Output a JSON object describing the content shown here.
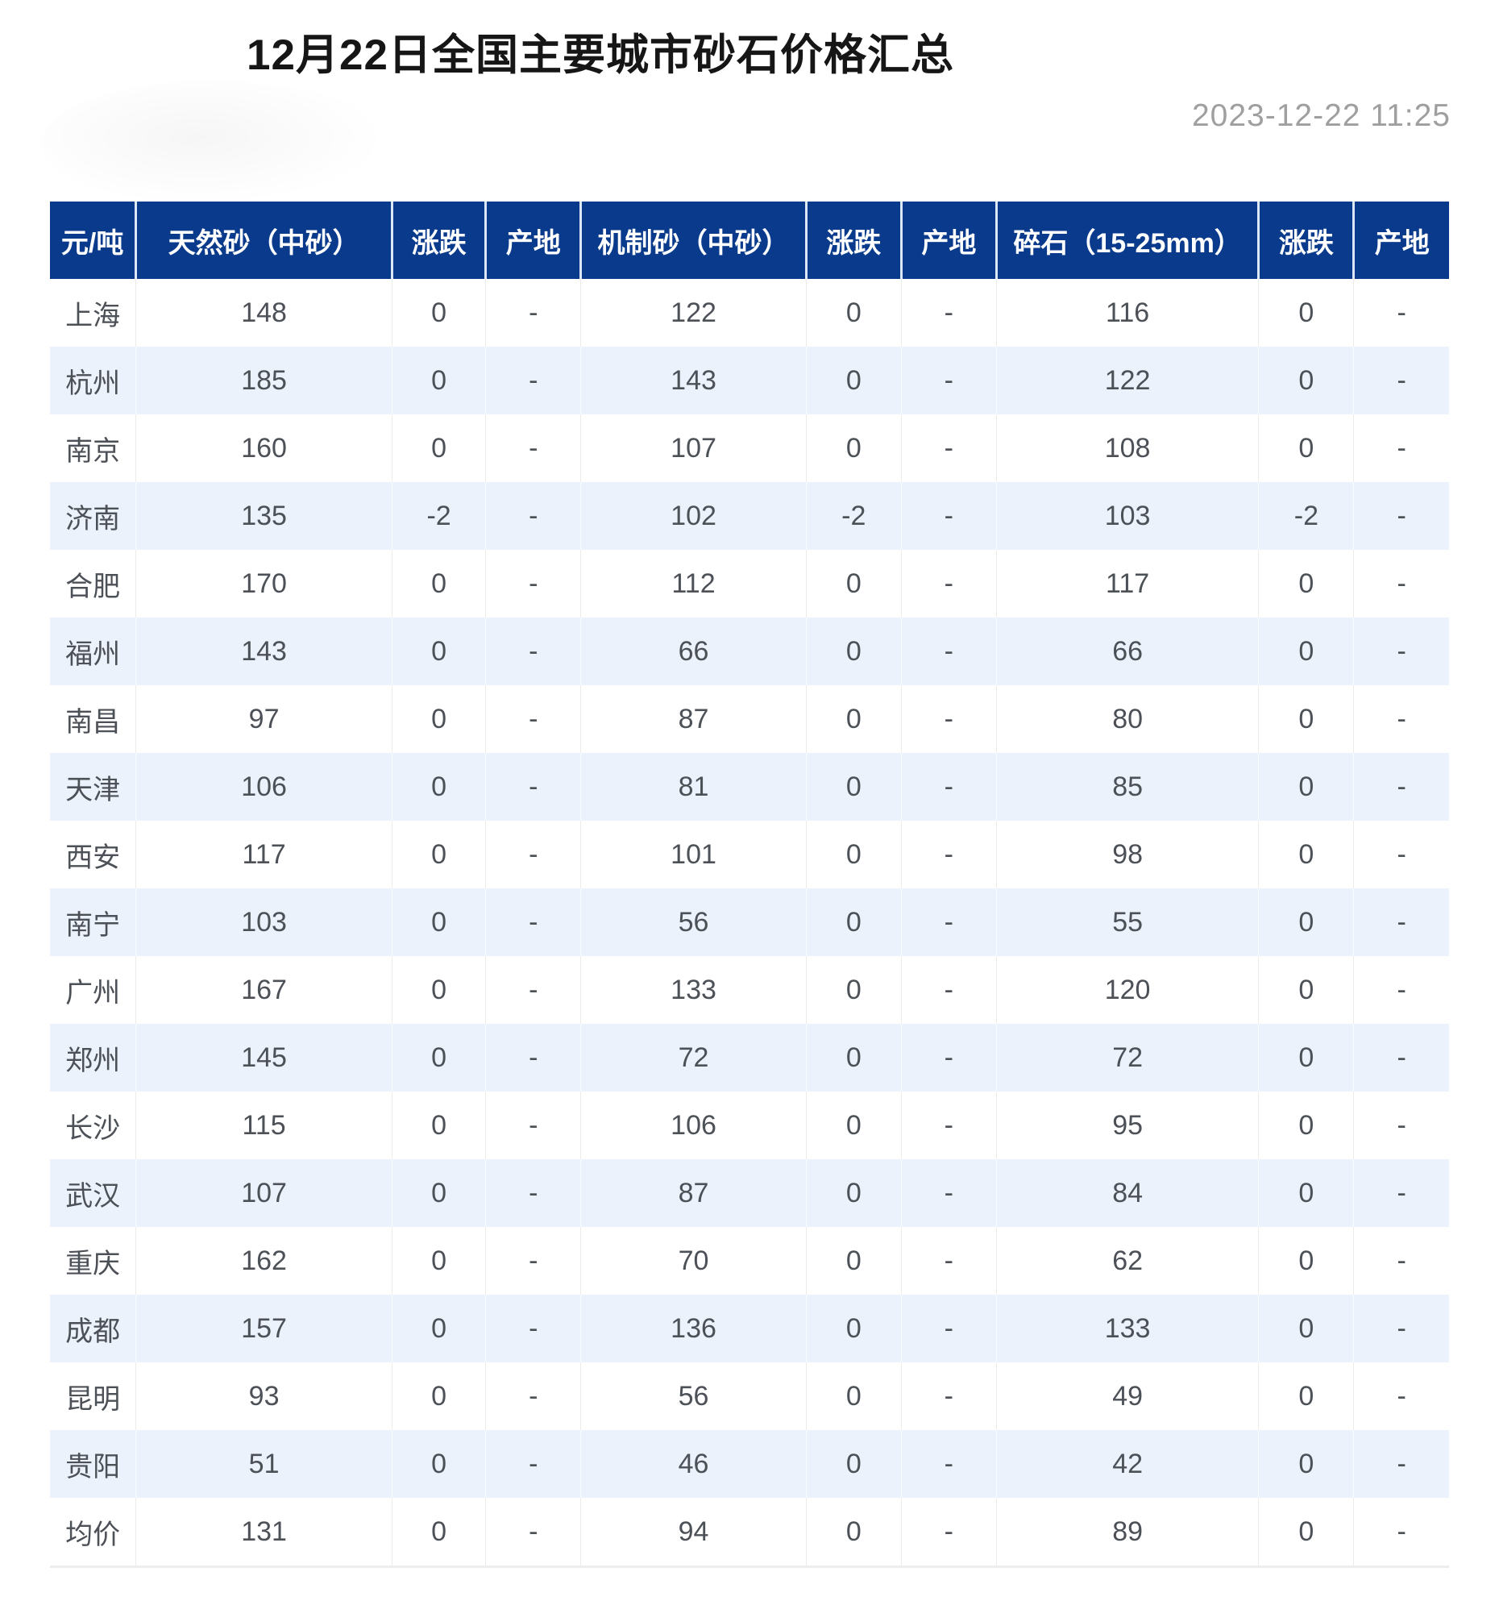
{
  "title": "12月22日全国主要城市砂石价格汇总",
  "timestamp": "2023-12-22 11:25",
  "colors": {
    "header_bg": "#0a3a8c",
    "header_text": "#ffffff",
    "row_alt_bg": "#ecf2fb",
    "body_text": "#4c5057",
    "timestamp_text": "#9f9f9f"
  },
  "chart_data": {
    "type": "table",
    "title": "12月22日全国主要城市砂石价格汇总",
    "unit": "元/吨",
    "columns": [
      "元/吨",
      "天然砂（中砂）",
      "涨跌",
      "产地",
      "机制砂（中砂）",
      "涨跌",
      "产地",
      "碎石（15-25mm）",
      "涨跌",
      "产地"
    ],
    "rows": [
      [
        "上海",
        "148",
        "0",
        "-",
        "122",
        "0",
        "-",
        "116",
        "0",
        "-"
      ],
      [
        "杭州",
        "185",
        "0",
        "-",
        "143",
        "0",
        "-",
        "122",
        "0",
        "-"
      ],
      [
        "南京",
        "160",
        "0",
        "-",
        "107",
        "0",
        "-",
        "108",
        "0",
        "-"
      ],
      [
        "济南",
        "135",
        "-2",
        "-",
        "102",
        "-2",
        "-",
        "103",
        "-2",
        "-"
      ],
      [
        "合肥",
        "170",
        "0",
        "-",
        "112",
        "0",
        "-",
        "117",
        "0",
        "-"
      ],
      [
        "福州",
        "143",
        "0",
        "-",
        "66",
        "0",
        "-",
        "66",
        "0",
        "-"
      ],
      [
        "南昌",
        "97",
        "0",
        "-",
        "87",
        "0",
        "-",
        "80",
        "0",
        "-"
      ],
      [
        "天津",
        "106",
        "0",
        "-",
        "81",
        "0",
        "-",
        "85",
        "0",
        "-"
      ],
      [
        "西安",
        "117",
        "0",
        "-",
        "101",
        "0",
        "-",
        "98",
        "0",
        "-"
      ],
      [
        "南宁",
        "103",
        "0",
        "-",
        "56",
        "0",
        "-",
        "55",
        "0",
        "-"
      ],
      [
        "广州",
        "167",
        "0",
        "-",
        "133",
        "0",
        "-",
        "120",
        "0",
        "-"
      ],
      [
        "郑州",
        "145",
        "0",
        "-",
        "72",
        "0",
        "-",
        "72",
        "0",
        "-"
      ],
      [
        "长沙",
        "115",
        "0",
        "-",
        "106",
        "0",
        "-",
        "95",
        "0",
        "-"
      ],
      [
        "武汉",
        "107",
        "0",
        "-",
        "87",
        "0",
        "-",
        "84",
        "0",
        "-"
      ],
      [
        "重庆",
        "162",
        "0",
        "-",
        "70",
        "0",
        "-",
        "62",
        "0",
        "-"
      ],
      [
        "成都",
        "157",
        "0",
        "-",
        "136",
        "0",
        "-",
        "133",
        "0",
        "-"
      ],
      [
        "昆明",
        "93",
        "0",
        "-",
        "56",
        "0",
        "-",
        "49",
        "0",
        "-"
      ],
      [
        "贵阳",
        "51",
        "0",
        "-",
        "46",
        "0",
        "-",
        "42",
        "0",
        "-"
      ],
      [
        "均价",
        "131",
        "0",
        "-",
        "94",
        "0",
        "-",
        "89",
        "0",
        "-"
      ]
    ]
  }
}
